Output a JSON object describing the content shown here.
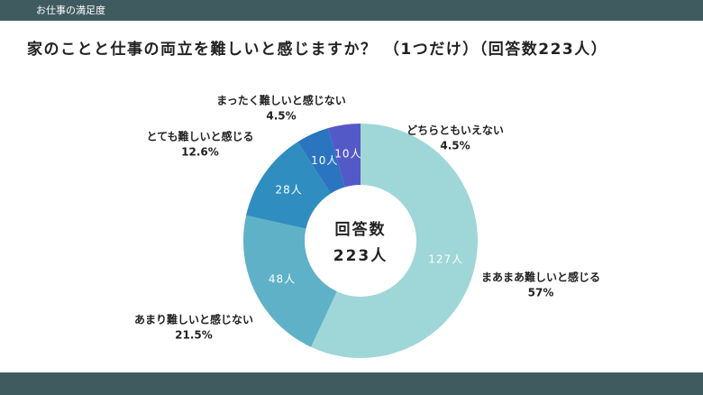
{
  "header": {
    "title": "お仕事の満足度"
  },
  "chart_data": {
    "type": "donut",
    "title": "家のことと仕事の両立を難しいと感じますか？ （1つだけ）（回答数223人）",
    "center_label": [
      "回答数",
      "223人"
    ],
    "categories": [
      "まあまあ難しいと感じる",
      "あまり難しいと感じない",
      "とても難しいと感じる",
      "まったく難しいと感じない",
      "どちらともいえない"
    ],
    "values": [
      127,
      48,
      28,
      10,
      10
    ],
    "value_labels": [
      "127人",
      "48人",
      "28人",
      "10人",
      "10人"
    ],
    "percents": [
      57,
      21.5,
      12.6,
      4.5,
      4.5
    ],
    "percent_labels": [
      "57%",
      "21.5%",
      "12.6%",
      "4.5%",
      "4.5%"
    ],
    "colors": [
      "#9fd6d7",
      "#5fb1c8",
      "#2f8ebf",
      "#2a74c0",
      "#5459c8"
    ]
  }
}
